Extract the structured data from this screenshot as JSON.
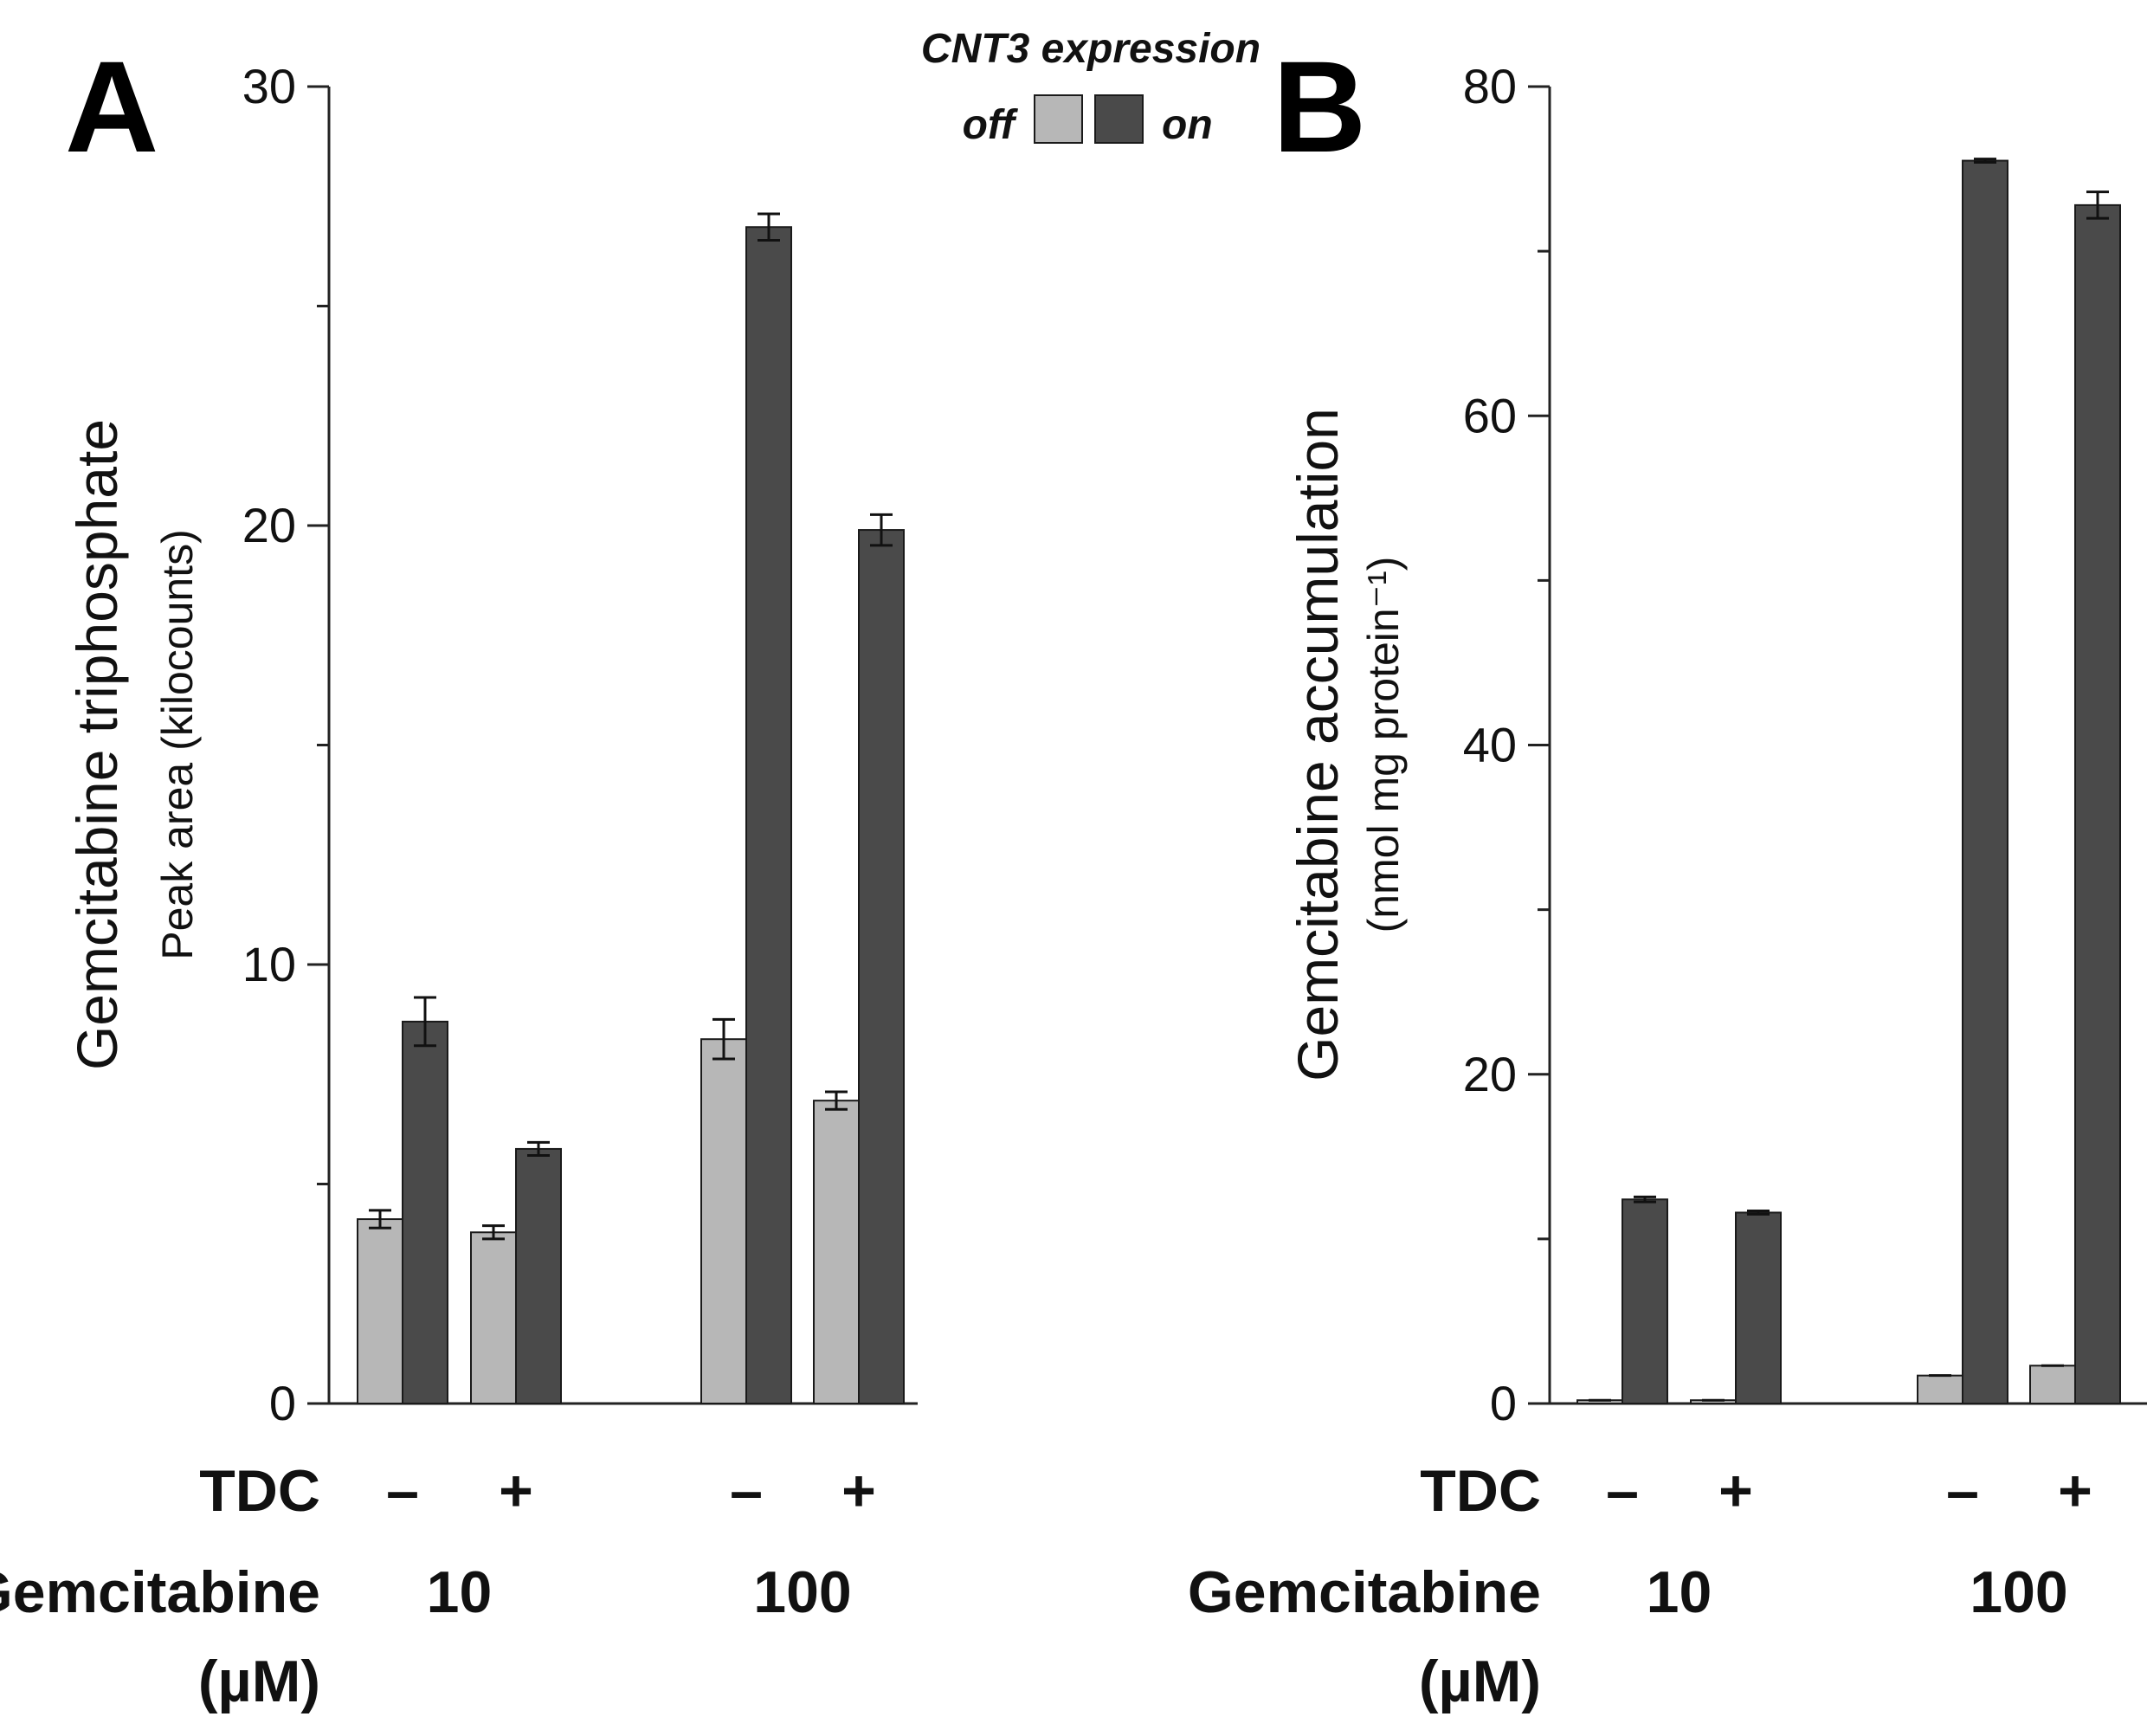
{
  "legend": {
    "title": "CNT3 expression",
    "off_label": "off",
    "on_label": "on"
  },
  "colors": {
    "off": "#b7b7b7",
    "on": "#4a4a4a",
    "axis": "#222222"
  },
  "row_labels": {
    "tdc": "TDC",
    "gem_line1": "Gemcitabine",
    "gem_line2": "(µM)"
  },
  "chart_data": [
    {
      "panel": "A",
      "type": "bar",
      "ylabel": "Gemcitabine triphosphate",
      "ylabel_sub": "Peak area (kilocounts)",
      "ylim": [
        0,
        30
      ],
      "yticks": [
        0,
        10,
        20,
        30
      ],
      "minor_ticks": [
        5,
        15,
        25
      ],
      "groups": [
        {
          "tdc": "–",
          "gemcitabine": "10"
        },
        {
          "tdc": "+",
          "gemcitabine": "10"
        },
        {
          "tdc": "–",
          "gemcitabine": "100"
        },
        {
          "tdc": "+",
          "gemcitabine": "100"
        }
      ],
      "gem_labels": [
        "10",
        "100"
      ],
      "series": [
        {
          "name": "off",
          "values": [
            4.2,
            3.9,
            8.3,
            6.9
          ],
          "errors": [
            0.2,
            0.15,
            0.45,
            0.2
          ]
        },
        {
          "name": "on",
          "values": [
            8.7,
            5.8,
            26.8,
            19.9
          ],
          "errors": [
            0.55,
            0.15,
            0.3,
            0.35
          ]
        }
      ]
    },
    {
      "panel": "B",
      "type": "bar",
      "ylabel": "Gemcitabine accumulation",
      "ylabel_sub": "(nmol mg protein⁻¹)",
      "ylim": [
        0,
        80
      ],
      "yticks": [
        0,
        20,
        40,
        60,
        80
      ],
      "minor_ticks": [
        10,
        30,
        50,
        70
      ],
      "groups": [
        {
          "tdc": "–",
          "gemcitabine": "10"
        },
        {
          "tdc": "+",
          "gemcitabine": "10"
        },
        {
          "tdc": "–",
          "gemcitabine": "100"
        },
        {
          "tdc": "+",
          "gemcitabine": "100"
        }
      ],
      "gem_labels": [
        "10",
        "100"
      ],
      "series": [
        {
          "name": "off",
          "values": [
            0.2,
            0.2,
            1.7,
            2.3
          ],
          "errors": [
            0.0,
            0.0,
            0.0,
            0.0
          ]
        },
        {
          "name": "on",
          "values": [
            12.4,
            11.6,
            75.5,
            72.8
          ],
          "errors": [
            0.15,
            0.1,
            0.1,
            0.8
          ]
        }
      ]
    }
  ]
}
